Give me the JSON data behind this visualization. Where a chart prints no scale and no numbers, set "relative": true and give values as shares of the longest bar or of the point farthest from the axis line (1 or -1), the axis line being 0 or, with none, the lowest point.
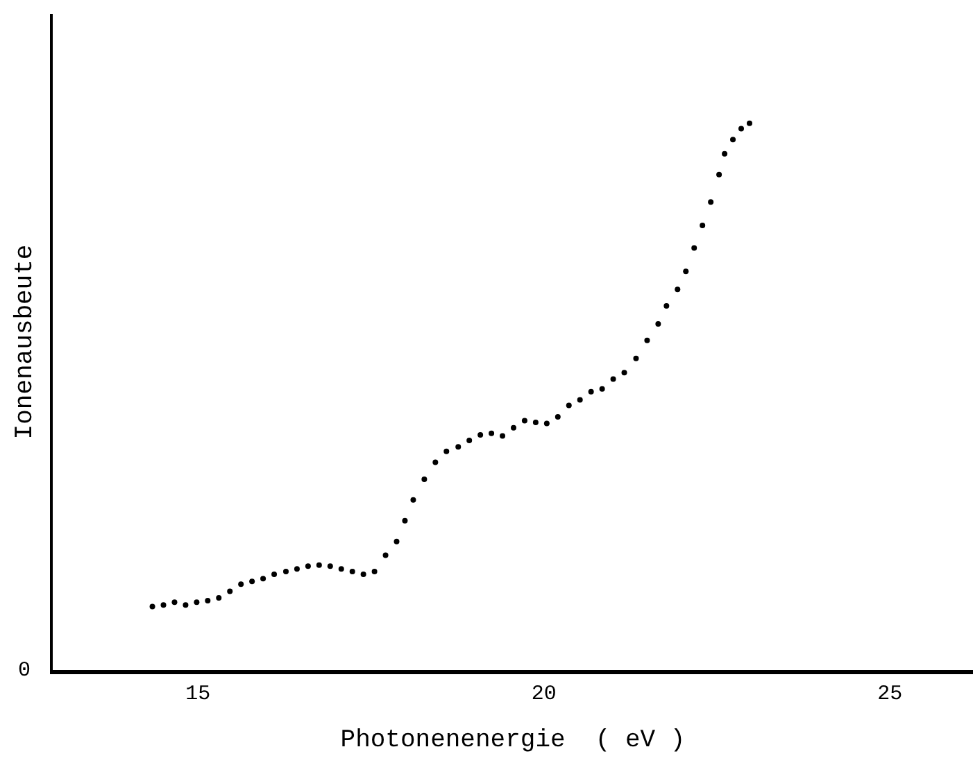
{
  "chart_data": {
    "type": "scatter",
    "relative": true,
    "xlabel": "Photonenenergie  ( eV )",
    "ylabel": "Ionenausbeute",
    "xlim": [
      12.9,
      26.2
    ],
    "xticks": [
      15,
      20,
      25
    ],
    "marker": "circle",
    "tick_labels": "x",
    "annotations": [
      "0"
    ],
    "series": [
      {
        "color": "#000000",
        "x": [
          14.34,
          14.5,
          14.66,
          14.82,
          14.98,
          15.14,
          15.3,
          15.46,
          15.62,
          15.78,
          15.94,
          16.1,
          16.27,
          16.43,
          16.59,
          16.75,
          16.91,
          17.07,
          17.23,
          17.39,
          17.55,
          17.71,
          17.87,
          17.99,
          18.11,
          18.27,
          18.43,
          18.59,
          18.76,
          18.92,
          19.08,
          19.24,
          19.4,
          19.56,
          19.72,
          19.88,
          20.04,
          20.2,
          20.36,
          20.52,
          20.68,
          20.84,
          21.0,
          21.16,
          21.33,
          21.49,
          21.65,
          21.77,
          21.93,
          22.05,
          22.17,
          22.29,
          22.41,
          22.53,
          22.61,
          22.73,
          22.85,
          22.97
        ],
        "values": [
          0.116,
          0.119,
          0.124,
          0.119,
          0.124,
          0.127,
          0.132,
          0.144,
          0.157,
          0.162,
          0.167,
          0.175,
          0.18,
          0.185,
          0.19,
          0.192,
          0.19,
          0.185,
          0.18,
          0.175,
          0.18,
          0.21,
          0.235,
          0.273,
          0.311,
          0.349,
          0.38,
          0.4,
          0.408,
          0.42,
          0.43,
          0.433,
          0.428,
          0.443,
          0.456,
          0.453,
          0.451,
          0.463,
          0.484,
          0.494,
          0.509,
          0.514,
          0.532,
          0.544,
          0.57,
          0.603,
          0.633,
          0.666,
          0.696,
          0.729,
          0.772,
          0.813,
          0.856,
          0.906,
          0.944,
          0.97,
          0.99,
          1.0
        ]
      }
    ]
  }
}
